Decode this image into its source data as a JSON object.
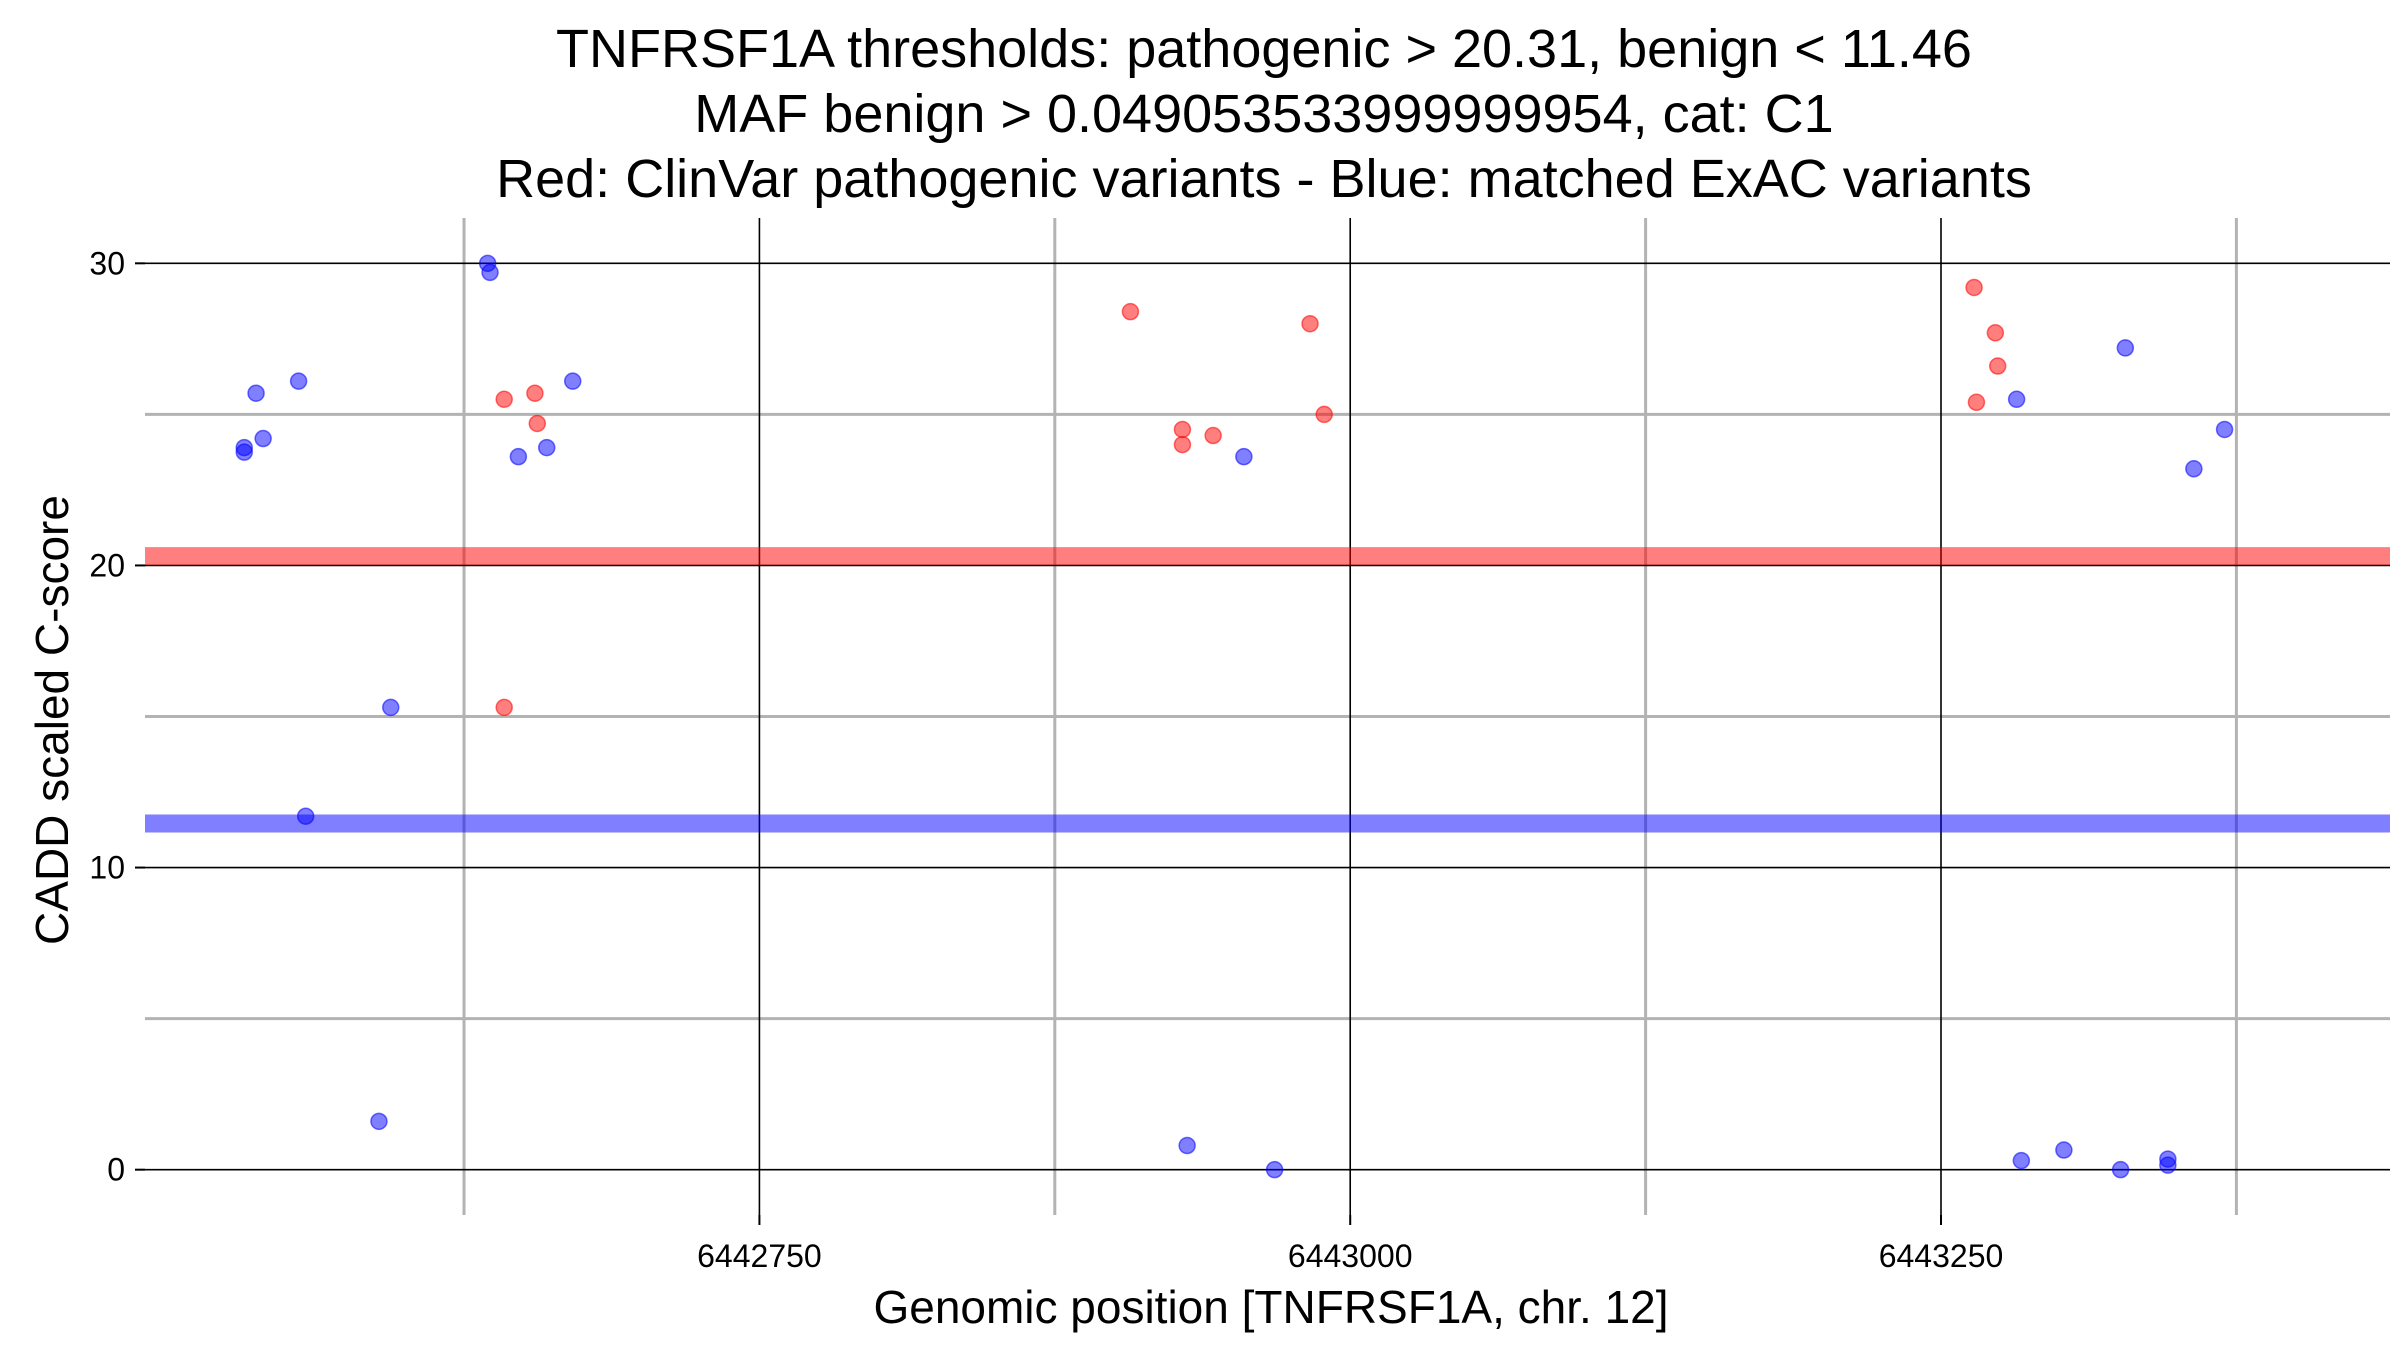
{
  "chart_data": {
    "type": "scatter",
    "title_lines": [
      "TNFRSF1A thresholds: pathogenic > 20.31, benign < 11.46",
      "MAF benign > 0.049053533999999954, cat: C1",
      "Red: ClinVar pathogenic variants - Blue: matched ExAC variants"
    ],
    "xlabel": "Genomic position [TNFRSF1A, chr. 12]",
    "ylabel": "CADD scaled C-score",
    "xlim": [
      6442490,
      6443440
    ],
    "ylim": [
      -1.5,
      31.5
    ],
    "x_major_ticks": [
      6442750,
      6443000,
      6443250
    ],
    "x_minor_gridlines": [
      6442625,
      6442875,
      6443125,
      6443375
    ],
    "y_major_ticks": [
      0,
      10,
      20,
      30
    ],
    "y_minor_gridlines": [
      5,
      15,
      25
    ],
    "thresholds": [
      {
        "name": "pathogenic",
        "value": 20.31,
        "color": "#ff0000"
      },
      {
        "name": "benign",
        "value": 11.46,
        "color": "#0000ff"
      }
    ],
    "colors": {
      "pathogenic": "#ff0000",
      "benign": "#0000ff"
    },
    "series": [
      {
        "name": "ClinVar pathogenic variants",
        "color": "#ff0000",
        "points": [
          {
            "x": 6442642,
            "y": 25.5
          },
          {
            "x": 6442655,
            "y": 25.7
          },
          {
            "x": 6442656,
            "y": 24.7
          },
          {
            "x": 6442642,
            "y": 15.3
          },
          {
            "x": 6442907,
            "y": 28.4
          },
          {
            "x": 6442929,
            "y": 24.5
          },
          {
            "x": 6442929,
            "y": 24.0
          },
          {
            "x": 6442942,
            "y": 24.3
          },
          {
            "x": 6442983,
            "y": 28.0
          },
          {
            "x": 6442989,
            "y": 25.0
          },
          {
            "x": 6443264,
            "y": 29.2
          },
          {
            "x": 6443273,
            "y": 27.7
          },
          {
            "x": 6443274,
            "y": 26.6
          },
          {
            "x": 6443265,
            "y": 25.4
          }
        ]
      },
      {
        "name": "matched ExAC variants",
        "color": "#0000ff",
        "points": [
          {
            "x": 6442532,
            "y": 23.9
          },
          {
            "x": 6442532,
            "y": 23.75
          },
          {
            "x": 6442537,
            "y": 25.7
          },
          {
            "x": 6442540,
            "y": 24.2
          },
          {
            "x": 6442555,
            "y": 26.1
          },
          {
            "x": 6442558,
            "y": 11.7
          },
          {
            "x": 6442589,
            "y": 1.6
          },
          {
            "x": 6442594,
            "y": 15.3
          },
          {
            "x": 6442635,
            "y": 30.0
          },
          {
            "x": 6442636,
            "y": 29.7
          },
          {
            "x": 6442648,
            "y": 23.6
          },
          {
            "x": 6442660,
            "y": 23.9
          },
          {
            "x": 6442671,
            "y": 26.1
          },
          {
            "x": 6442931,
            "y": 0.8
          },
          {
            "x": 6442955,
            "y": 23.6
          },
          {
            "x": 6442968,
            "y": 0.0
          },
          {
            "x": 6443282,
            "y": 25.5
          },
          {
            "x": 6443284,
            "y": 0.3
          },
          {
            "x": 6443302,
            "y": 0.65
          },
          {
            "x": 6443326,
            "y": 0.0
          },
          {
            "x": 6443328,
            "y": 27.2
          },
          {
            "x": 6443346,
            "y": 0.35
          },
          {
            "x": 6443346,
            "y": 0.15
          },
          {
            "x": 6443357,
            "y": 23.2
          },
          {
            "x": 6443370,
            "y": 24.5
          }
        ]
      }
    ]
  }
}
